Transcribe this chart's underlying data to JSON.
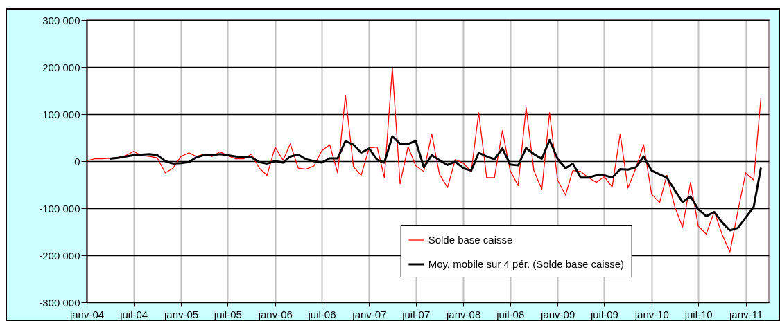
{
  "chart_data": {
    "type": "line",
    "x": [
      "2004-01",
      "2004-02",
      "2004-03",
      "2004-04",
      "2004-05",
      "2004-06",
      "2004-07",
      "2004-08",
      "2004-09",
      "2004-10",
      "2004-11",
      "2004-12",
      "2005-01",
      "2005-02",
      "2005-03",
      "2005-04",
      "2005-05",
      "2005-06",
      "2005-07",
      "2005-08",
      "2005-09",
      "2005-10",
      "2005-11",
      "2005-12",
      "2006-01",
      "2006-02",
      "2006-03",
      "2006-04",
      "2006-05",
      "2006-06",
      "2006-07",
      "2006-08",
      "2006-09",
      "2006-10",
      "2006-11",
      "2006-12",
      "2007-01",
      "2007-02",
      "2007-03",
      "2007-04",
      "2007-05",
      "2007-06",
      "2007-07",
      "2007-08",
      "2007-09",
      "2007-10",
      "2007-11",
      "2007-12",
      "2008-01",
      "2008-02",
      "2008-03",
      "2008-04",
      "2008-05",
      "2008-06",
      "2008-07",
      "2008-08",
      "2008-09",
      "2008-10",
      "2008-11",
      "2008-12",
      "2009-01",
      "2009-02",
      "2009-03",
      "2009-04",
      "2009-05",
      "2009-06",
      "2009-07",
      "2009-08",
      "2009-09",
      "2009-10",
      "2009-11",
      "2009-12",
      "2010-01",
      "2010-02",
      "2010-03",
      "2010-04",
      "2010-05",
      "2010-06",
      "2010-07",
      "2010-08",
      "2010-09",
      "2010-10",
      "2010-11",
      "2010-12",
      "2011-01",
      "2011-02",
      "2011-03"
    ],
    "series": [
      {
        "name": "Solde base caisse",
        "color": "#ff0000",
        "values": [
          1000,
          5000,
          5000,
          6000,
          8000,
          12000,
          21000,
          12000,
          10000,
          7000,
          -25000,
          -15000,
          10000,
          18000,
          10000,
          15000,
          10000,
          20000,
          12000,
          5000,
          5000,
          15000,
          -15000,
          -30000,
          30000,
          2000,
          37000,
          -15000,
          -17000,
          -10000,
          22000,
          35000,
          -25000,
          140000,
          -12000,
          -30000,
          28000,
          30000,
          -35000,
          198000,
          -48000,
          31000,
          -10000,
          -22000,
          58000,
          -28000,
          -56000,
          3000,
          -4000,
          -22000,
          103000,
          -35000,
          -35000,
          65000,
          -20000,
          -52000,
          114000,
          -20000,
          -60000,
          103000,
          -40000,
          -72000,
          -20000,
          -22000,
          -35000,
          -45000,
          -33000,
          -55000,
          58000,
          -57000,
          -15000,
          35000,
          -70000,
          -88000,
          -30000,
          -97000,
          -140000,
          -45000,
          -138000,
          -155000,
          -107000,
          -155000,
          -193000,
          -108000,
          -25000,
          -40000,
          135000
        ]
      },
      {
        "name": "Moy. mobile sur 4 pér. (Solde base caisse)",
        "color": "#000000",
        "values": [
          null,
          null,
          null,
          5000,
          7000,
          10000,
          13000,
          14000,
          15000,
          13000,
          0,
          -5000,
          -4000,
          -2000,
          8000,
          13000,
          13000,
          15000,
          13000,
          10000,
          9000,
          8000,
          -2000,
          -5000,
          0,
          -3000,
          10000,
          14000,
          4000,
          0,
          -3000,
          6000,
          6000,
          43000,
          35000,
          18000,
          27000,
          3000,
          -3000,
          53000,
          37000,
          37000,
          43000,
          -13000,
          13000,
          2000,
          -8000,
          -1000,
          -15000,
          -20000,
          18000,
          10000,
          4000,
          27000,
          -7000,
          -9000,
          28000,
          15000,
          5000,
          45000,
          5000,
          -15000,
          -5000,
          -35000,
          -35000,
          -30000,
          -30000,
          -35000,
          -17000,
          -18000,
          -13000,
          10000,
          -20000,
          -28000,
          -35000,
          -62000,
          -87000,
          -75000,
          -102000,
          -117000,
          -108000,
          -130000,
          -147000,
          -142000,
          -120000,
          -97000,
          -14000
        ]
      }
    ],
    "xlim": [
      "2004-01",
      "2011-04"
    ],
    "xticks": [
      {
        "value": "2004-01",
        "label": "janv-04"
      },
      {
        "value": "2004-07",
        "label": "juil-04"
      },
      {
        "value": "2005-01",
        "label": "janv-05"
      },
      {
        "value": "2005-07",
        "label": "juil-05"
      },
      {
        "value": "2006-01",
        "label": "janv-06"
      },
      {
        "value": "2006-07",
        "label": "juil-06"
      },
      {
        "value": "2007-01",
        "label": "janv-07"
      },
      {
        "value": "2007-07",
        "label": "juil-07"
      },
      {
        "value": "2008-01",
        "label": "janv-08"
      },
      {
        "value": "2008-07",
        "label": "juil-08"
      },
      {
        "value": "2009-01",
        "label": "janv-09"
      },
      {
        "value": "2009-07",
        "label": "juil-09"
      },
      {
        "value": "2010-01",
        "label": "janv-10"
      },
      {
        "value": "2010-07",
        "label": "juil-10"
      },
      {
        "value": "2011-01",
        "label": "janv-11"
      }
    ],
    "ylim": [
      -300000,
      300000
    ],
    "yticks": [
      {
        "value": -300000,
        "label": "-300 000"
      },
      {
        "value": -200000,
        "label": "-200 000"
      },
      {
        "value": -100000,
        "label": "-100 000"
      },
      {
        "value": 0,
        "label": "0"
      },
      {
        "value": 100000,
        "label": "100 000"
      },
      {
        "value": 200000,
        "label": "200 000"
      },
      {
        "value": 300000,
        "label": "300 000"
      }
    ],
    "grid": true,
    "legend": "bottom",
    "marker": "none",
    "line_style": "solid"
  }
}
